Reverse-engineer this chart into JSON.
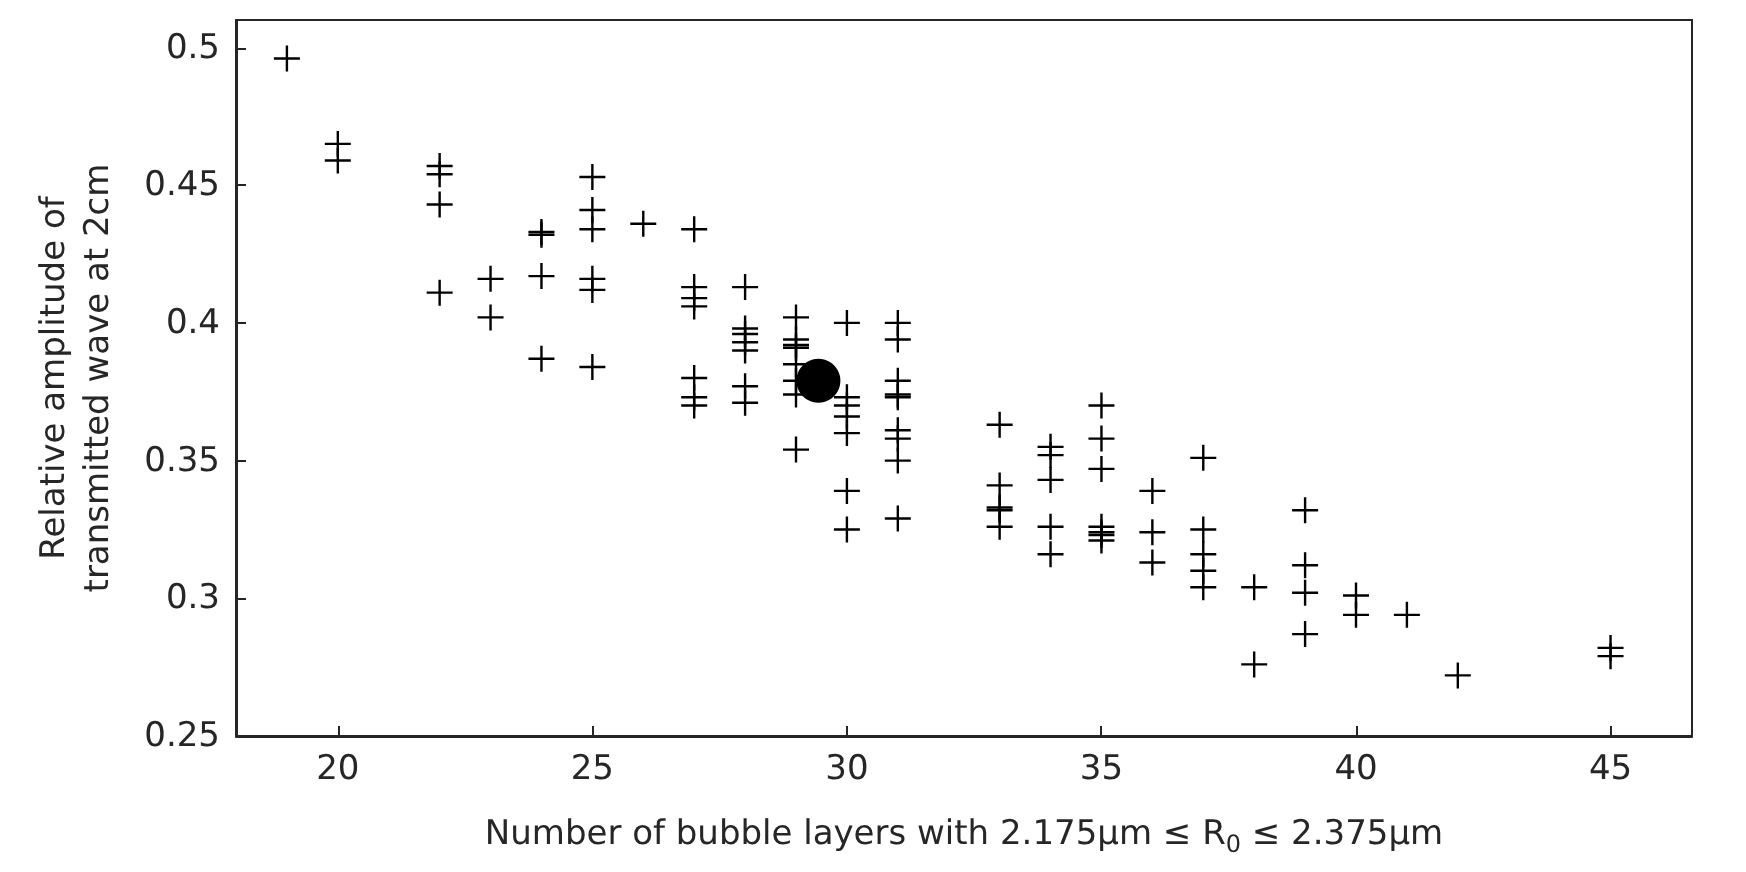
{
  "chart_data": {
    "type": "scatter",
    "xlabel": "Number of bubble layers with 2.175μm ≤ R$_{0}$ ≤ 2.375μm",
    "ylabel": "Relative amplitude of\ntransmitted wave at 2cm",
    "xlim": [
      18,
      46.6
    ],
    "xticks": [
      20,
      25,
      30,
      35,
      40,
      45
    ],
    "ylim": [
      0.25,
      0.51
    ],
    "yticks": [
      0.25,
      0.3,
      0.35,
      0.4,
      0.45,
      0.5
    ],
    "series": [
      {
        "color": "#000000",
        "marker": "cross",
        "x": [
          19,
          20,
          20,
          22,
          22,
          22,
          22,
          23,
          23,
          24,
          24,
          24,
          24,
          25,
          25,
          25,
          25,
          25,
          25,
          26,
          27,
          27,
          27,
          27,
          27,
          27,
          27,
          28,
          28,
          28,
          28,
          28,
          28,
          28,
          29,
          29,
          29,
          29,
          29,
          29,
          29,
          29,
          30,
          30,
          30,
          30,
          30,
          30,
          30,
          31,
          31,
          31,
          31,
          31,
          31,
          31,
          31,
          31,
          33,
          33,
          33,
          33,
          33,
          34,
          34,
          34,
          34,
          34,
          35,
          35,
          35,
          35,
          35,
          35,
          35,
          36,
          36,
          36,
          37,
          37,
          37,
          37,
          37,
          38,
          38,
          39,
          39,
          39,
          39,
          40,
          40,
          41,
          42,
          45,
          45
        ],
        "values": [
          0.496,
          0.465,
          0.459,
          0.457,
          0.454,
          0.443,
          0.411,
          0.416,
          0.402,
          0.433,
          0.432,
          0.417,
          0.387,
          0.453,
          0.441,
          0.434,
          0.416,
          0.412,
          0.384,
          0.436,
          0.434,
          0.413,
          0.409,
          0.406,
          0.38,
          0.373,
          0.37,
          0.413,
          0.398,
          0.396,
          0.393,
          0.39,
          0.377,
          0.371,
          0.402,
          0.394,
          0.392,
          0.391,
          0.385,
          0.379,
          0.374,
          0.354,
          0.4,
          0.373,
          0.37,
          0.366,
          0.36,
          0.339,
          0.325,
          0.4,
          0.394,
          0.379,
          0.374,
          0.373,
          0.361,
          0.358,
          0.35,
          0.329,
          0.363,
          0.341,
          0.333,
          0.332,
          0.326,
          0.355,
          0.352,
          0.343,
          0.326,
          0.316,
          0.37,
          0.358,
          0.347,
          0.326,
          0.324,
          0.323,
          0.321,
          0.339,
          0.324,
          0.313,
          0.351,
          0.325,
          0.316,
          0.31,
          0.304,
          0.304,
          0.276,
          0.332,
          0.312,
          0.302,
          0.287,
          0.301,
          0.294,
          0.294,
          0.272,
          0.282,
          0.279
        ]
      },
      {
        "color": "#000000",
        "marker": "circle",
        "x": [
          29.44
        ],
        "values": [
          0.379
        ]
      }
    ]
  }
}
